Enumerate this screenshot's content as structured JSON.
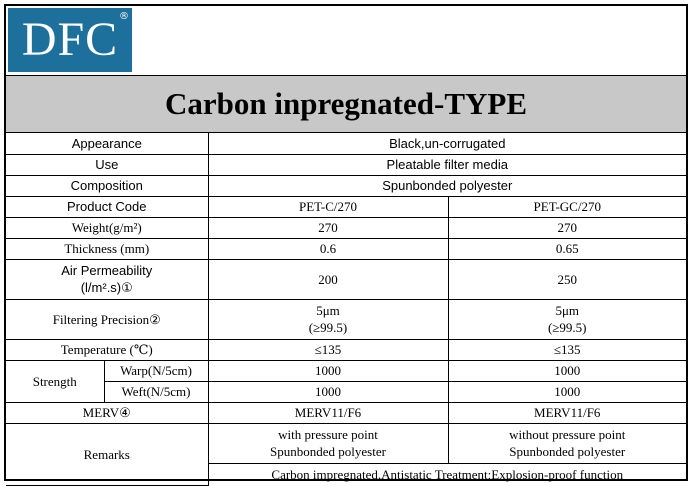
{
  "logo": {
    "text": "DFC",
    "reg_mark": "®"
  },
  "title": "Carbon inpregnated-TYPE",
  "rows": {
    "appearance": {
      "label": "Appearance",
      "value": "Black,un-corrugated"
    },
    "use": {
      "label": "Use",
      "value": "Pleatable filter media"
    },
    "composition": {
      "label": "Composition",
      "value": "Spunbonded polyester"
    },
    "product_code": {
      "label": "Product Code",
      "a": "PET-C/270",
      "b": "PET-GC/270"
    },
    "weight": {
      "label": "Weight(g/m²)",
      "a": "270",
      "b": "270"
    },
    "thickness": {
      "label": "Thickness (mm)",
      "a": "0.6",
      "b": "0.65"
    },
    "air_permeability": {
      "label_line1": "Air Permeability",
      "label_line2": "(l/m².s)①",
      "a": "200",
      "b": "250"
    },
    "filtering_precision": {
      "label": "Filtering Precision②",
      "a_line1": "5μm",
      "a_line2": "(≥99.5)",
      "b_line1": "5μm",
      "b_line2": "(≥99.5)"
    },
    "temperature": {
      "label": "Temperature (℃)",
      "a": "≤135",
      "b": "≤135"
    },
    "strength": {
      "label": "Strength",
      "warp": {
        "label": "Warp(N/5cm)",
        "a": "1000",
        "b": "1000"
      },
      "weft": {
        "label": "Weft(N/5cm)",
        "a": "1000",
        "b": "1000"
      }
    },
    "merv": {
      "label": "MERV④",
      "a": "MERV11/F6",
      "b": "MERV11/F6"
    },
    "remarks": {
      "label": "Remarks",
      "a_line1": "with pressure point",
      "a_line2": "Spunbonded polyester",
      "b_line1": "without pressure point",
      "b_line2": "Spunbonded polyester",
      "common": "Carbon impregnated,Antistatic Treatment;Explosion-proof function"
    }
  }
}
